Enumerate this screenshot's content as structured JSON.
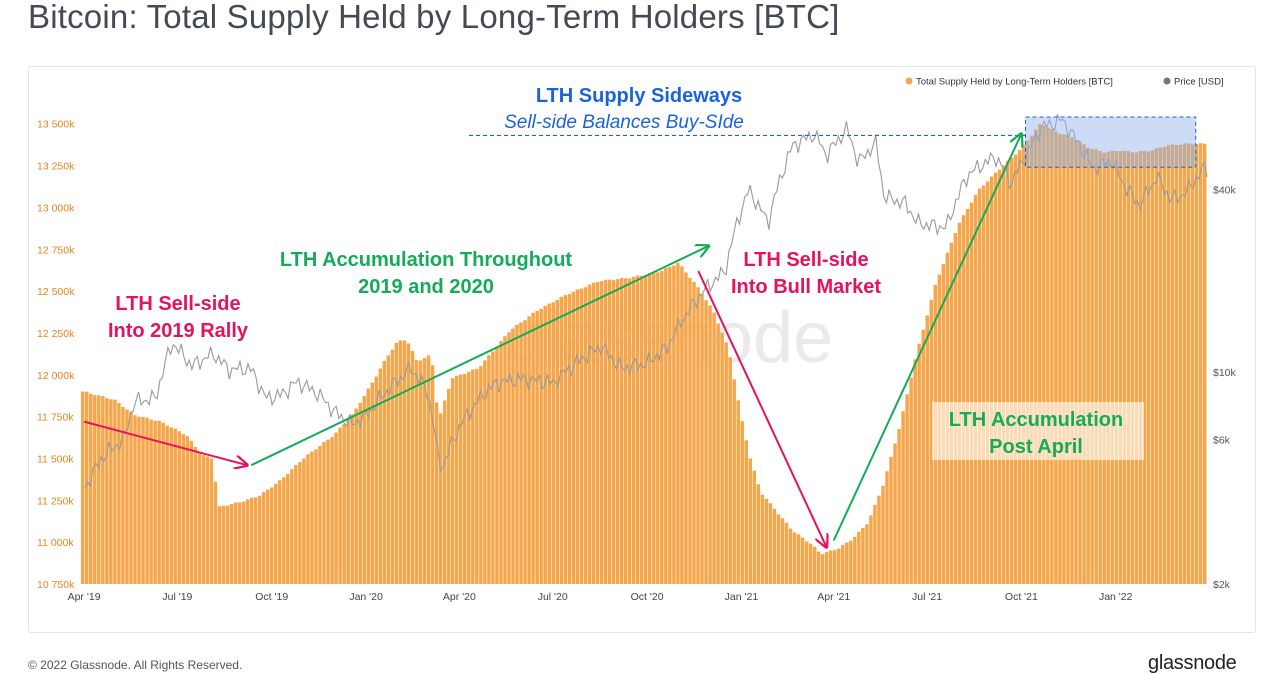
{
  "page": {
    "title": "Bitcoin: Total Supply Held by Long-Term Holders [BTC]",
    "footer": "© 2022 Glassnode. All Rights Reserved.",
    "brand": "glassnode"
  },
  "chart_data": {
    "type": "bar",
    "watermark": "glassnode",
    "legend_position": "top-right",
    "series": [
      {
        "name": "Total Supply Held by Long-Term Holders [BTC]",
        "type": "bar",
        "color": "#f5a64a",
        "points": [
          [
            "2019-04-01",
            11900
          ],
          [
            "2019-05-01",
            11850
          ],
          [
            "2019-05-20",
            11760
          ],
          [
            "2019-06-15",
            11720
          ],
          [
            "2019-07-10",
            11640
          ],
          [
            "2019-07-25",
            11520
          ],
          [
            "2019-08-05",
            11500
          ],
          [
            "2019-08-10",
            11210
          ],
          [
            "2019-09-01",
            11240
          ],
          [
            "2019-09-20",
            11280
          ],
          [
            "2019-10-10",
            11370
          ],
          [
            "2019-11-01",
            11500
          ],
          [
            "2019-12-01",
            11640
          ],
          [
            "2019-12-20",
            11770
          ],
          [
            "2020-01-10",
            11980
          ],
          [
            "2020-01-20",
            12090
          ],
          [
            "2020-02-01",
            12200
          ],
          [
            "2020-02-10",
            12210
          ],
          [
            "2020-02-20",
            12080
          ],
          [
            "2020-03-05",
            12120
          ],
          [
            "2020-03-12",
            11730
          ],
          [
            "2020-03-25",
            11980
          ],
          [
            "2020-04-20",
            12040
          ],
          [
            "2020-05-20",
            12260
          ],
          [
            "2020-06-15",
            12380
          ],
          [
            "2020-07-15",
            12480
          ],
          [
            "2020-08-15",
            12560
          ],
          [
            "2020-09-15",
            12580
          ],
          [
            "2020-10-15",
            12620
          ],
          [
            "2020-11-01",
            12670
          ],
          [
            "2020-11-20",
            12520
          ],
          [
            "2020-12-05",
            12380
          ],
          [
            "2020-12-20",
            12150
          ],
          [
            "2021-01-01",
            11750
          ],
          [
            "2021-01-10",
            11500
          ],
          [
            "2021-01-20",
            11300
          ],
          [
            "2021-02-05",
            11180
          ],
          [
            "2021-02-20",
            11070
          ],
          [
            "2021-03-10",
            10990
          ],
          [
            "2021-03-20",
            10930
          ],
          [
            "2021-04-05",
            10960
          ],
          [
            "2021-04-20",
            11020
          ],
          [
            "2021-05-05",
            11120
          ],
          [
            "2021-05-20",
            11350
          ],
          [
            "2021-06-05",
            11700
          ],
          [
            "2021-06-20",
            12100
          ],
          [
            "2021-07-10",
            12550
          ],
          [
            "2021-08-01",
            12900
          ],
          [
            "2021-08-20",
            13100
          ],
          [
            "2021-09-10",
            13230
          ],
          [
            "2021-10-01",
            13350
          ],
          [
            "2021-10-20",
            13500
          ],
          [
            "2021-11-05",
            13450
          ],
          [
            "2021-11-20",
            13420
          ],
          [
            "2021-12-05",
            13360
          ],
          [
            "2021-12-20",
            13330
          ],
          [
            "2022-01-05",
            13340
          ],
          [
            "2022-01-20",
            13330
          ],
          [
            "2022-02-05",
            13340
          ],
          [
            "2022-02-20",
            13370
          ],
          [
            "2022-03-10",
            13380
          ]
        ]
      },
      {
        "name": "Price [USD]",
        "type": "line",
        "color": "#9a9a9a",
        "points": [
          [
            "2019-04-01",
            4100
          ],
          [
            "2019-04-20",
            5300
          ],
          [
            "2019-05-10",
            6000
          ],
          [
            "2019-05-20",
            8000
          ],
          [
            "2019-06-10",
            8200
          ],
          [
            "2019-06-26",
            12500
          ],
          [
            "2019-07-15",
            10500
          ],
          [
            "2019-08-05",
            11500
          ],
          [
            "2019-08-20",
            10200
          ],
          [
            "2019-09-10",
            10300
          ],
          [
            "2019-09-25",
            8200
          ],
          [
            "2019-10-10",
            8400
          ],
          [
            "2019-10-26",
            9300
          ],
          [
            "2019-11-15",
            8500
          ],
          [
            "2019-12-01",
            7400
          ],
          [
            "2019-12-18",
            6700
          ],
          [
            "2020-01-01",
            7200
          ],
          [
            "2020-01-20",
            8600
          ],
          [
            "2020-02-14",
            10300
          ],
          [
            "2020-03-01",
            8600
          ],
          [
            "2020-03-12",
            5000
          ],
          [
            "2020-03-16",
            4900
          ],
          [
            "2020-04-01",
            6600
          ],
          [
            "2020-04-29",
            8800
          ],
          [
            "2020-05-10",
            9300
          ],
          [
            "2020-06-01",
            9500
          ],
          [
            "2020-07-01",
            9200
          ],
          [
            "2020-07-28",
            11000
          ],
          [
            "2020-08-17",
            12200
          ],
          [
            "2020-09-05",
            10300
          ],
          [
            "2020-10-01",
            10700
          ],
          [
            "2020-10-20",
            12000
          ],
          [
            "2020-11-05",
            15000
          ],
          [
            "2020-11-25",
            18500
          ],
          [
            "2020-12-16",
            21500
          ],
          [
            "2021-01-08",
            40000
          ],
          [
            "2021-01-27",
            31000
          ],
          [
            "2021-02-20",
            56000
          ],
          [
            "2021-03-13",
            61000
          ],
          [
            "2021-03-25",
            52000
          ],
          [
            "2021-04-14",
            63500
          ],
          [
            "2021-04-25",
            49000
          ],
          [
            "2021-05-12",
            57000
          ],
          [
            "2021-05-20",
            38000
          ],
          [
            "2021-06-10",
            36000
          ],
          [
            "2021-06-22",
            31000
          ],
          [
            "2021-07-20",
            30000
          ],
          [
            "2021-08-10",
            45000
          ],
          [
            "2021-09-06",
            51500
          ],
          [
            "2021-09-21",
            42000
          ],
          [
            "2021-10-10",
            55000
          ],
          [
            "2021-10-20",
            64000
          ],
          [
            "2021-11-10",
            68000
          ],
          [
            "2021-11-25",
            57000
          ],
          [
            "2021-12-10",
            47000
          ],
          [
            "2021-12-27",
            50000
          ],
          [
            "2022-01-10",
            41000
          ],
          [
            "2022-01-24",
            35500
          ],
          [
            "2022-02-10",
            44000
          ],
          [
            "2022-02-24",
            37000
          ],
          [
            "2022-03-10",
            39000
          ],
          [
            "2022-03-28",
            47000
          ]
        ]
      }
    ],
    "x_axis": {
      "ticks": [
        "2019-04-01",
        "2019-07-01",
        "2019-10-01",
        "2020-01-01",
        "2020-04-01",
        "2020-07-01",
        "2020-10-01",
        "2021-01-01",
        "2021-04-01",
        "2021-07-01",
        "2021-10-01",
        "2022-01-01"
      ],
      "tick_labels": [
        "Apr '19",
        "Jul '19",
        "Oct '19",
        "Jan '20",
        "Apr '20",
        "Jul '20",
        "Oct '20",
        "Jan '21",
        "Apr '21",
        "Jul '21",
        "Oct '21",
        "Jan '22"
      ]
    },
    "y_axis_left": {
      "ylim": [
        10750,
        13600
      ],
      "ticks": [
        10750,
        11000,
        11250,
        11500,
        11750,
        12000,
        12250,
        12500,
        12750,
        13000,
        13250,
        13500
      ],
      "tick_labels": [
        "10 750k",
        "11 000k",
        "11 250k",
        "11 500k",
        "11 750k",
        "12 000k",
        "12 250k",
        "12 500k",
        "12 750k",
        "13 000k",
        "13 250k",
        "13 500k"
      ]
    },
    "y_axis_right": {
      "scale": "log",
      "ylim": [
        2000,
        75000
      ],
      "ticks": [
        2000,
        6000,
        10000,
        40000
      ],
      "tick_labels": [
        "$2k",
        "$6k",
        "$10k",
        "$40k"
      ]
    },
    "annotations": [
      {
        "id": "lth-sell-2019",
        "lines": [
          "LTH Sell-side",
          "Into 2019 Rally"
        ],
        "color": "#e4135e",
        "arrow_from": [
          "2019-04-01",
          11720
        ],
        "arrow_to": [
          "2019-09-07",
          11460
        ]
      },
      {
        "id": "lth-accum-2019-2020",
        "lines": [
          "LTH Accumulation Throughout",
          "2019 and 2020"
        ],
        "color": "#15ab58",
        "arrow_from": [
          "2019-09-11",
          11460
        ],
        "arrow_to": [
          "2020-11-30",
          12770
        ]
      },
      {
        "id": "lth-sell-bull",
        "lines": [
          "LTH Sell-side",
          "Into Bull Market"
        ],
        "color": "#e4135e",
        "arrow_from": [
          "2020-11-20",
          12620
        ],
        "arrow_to": [
          "2021-03-25",
          10970
        ]
      },
      {
        "id": "lth-accum-april",
        "lines": [
          "LTH Accumulation",
          "Post April"
        ],
        "color": "#15ab58",
        "arrow_from": [
          "2021-04-01",
          11010
        ],
        "arrow_to": [
          "2021-10-01",
          13440
        ]
      },
      {
        "id": "lth-sideways",
        "title": "LTH Supply Sideways",
        "subtitle": "Sell-side Balances Buy-SIde",
        "color": "#1b63d9",
        "dashed_level": 13430,
        "box": [
          [
            "2021-10-05",
            13240
          ],
          [
            "2022-03-20",
            13540
          ]
        ]
      }
    ]
  }
}
